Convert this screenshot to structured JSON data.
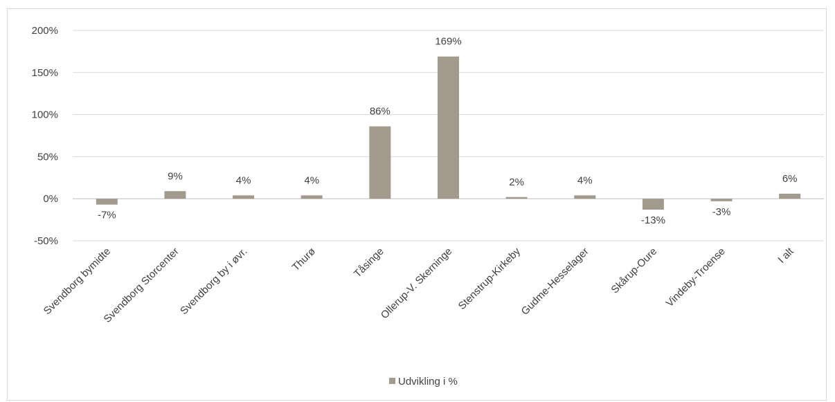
{
  "chart_data": {
    "type": "bar",
    "categories": [
      "Svendborg bymidte",
      "Svendborg Storcenter",
      "Svendborg by i øvr.",
      "Thurø",
      "Tåsinge",
      "Ollerup-V. Skerninge",
      "Stenstrup-Kirkeby",
      "Gudme-Hesselager",
      "Skårup-Oure",
      "Vindeby-Troense",
      "I alt"
    ],
    "series": [
      {
        "name": "Udvikling i %",
        "values": [
          -7,
          9,
          4,
          4,
          86,
          169,
          2,
          4,
          -13,
          -3,
          6
        ],
        "labels": [
          "-7%",
          "9%",
          "4%",
          "4%",
          "86%",
          "169%",
          "2%",
          "4%",
          "-13%",
          "-3%",
          "6%"
        ],
        "color": "#a39a8e"
      }
    ],
    "ylim": [
      -50,
      200
    ],
    "y_ticks": [
      {
        "value": 200,
        "label": "200%"
      },
      {
        "value": 150,
        "label": "150%"
      },
      {
        "value": 100,
        "label": "100%"
      },
      {
        "value": 50,
        "label": "50%"
      },
      {
        "value": 0,
        "label": "0%"
      },
      {
        "value": -50,
        "label": "-50%"
      }
    ],
    "grid": true,
    "legend_position": "bottom"
  }
}
